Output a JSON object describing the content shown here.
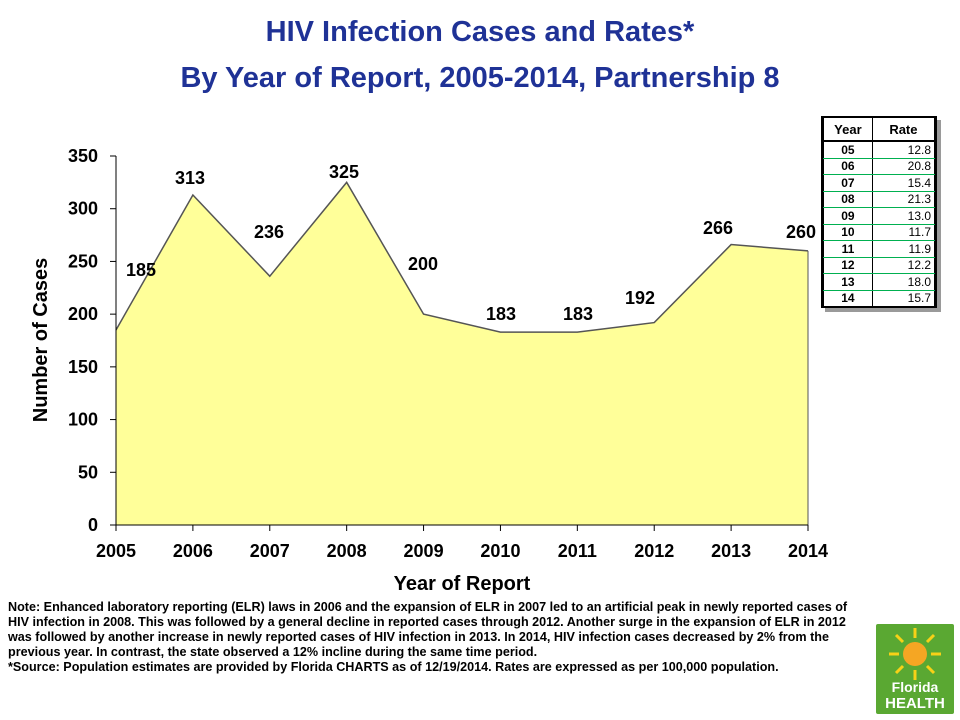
{
  "title_line1": "HIV Infection Cases and Rates*",
  "title_line2": "By Year of Report, 2005-2014, Partnership 8",
  "chart_data": {
    "type": "area",
    "x": [
      "2005",
      "2006",
      "2007",
      "2008",
      "2009",
      "2010",
      "2011",
      "2012",
      "2013",
      "2014"
    ],
    "values": [
      185,
      313,
      236,
      325,
      200,
      183,
      183,
      192,
      266,
      260
    ],
    "data_labels": [
      "185",
      "313",
      "236",
      "325",
      "200",
      "183",
      "183",
      "192",
      "266",
      "260"
    ],
    "yticks": [
      "0",
      "50",
      "100",
      "150",
      "200",
      "250",
      "300",
      "350"
    ],
    "xlabel": "Year of Report",
    "ylabel": "Number of Cases",
    "ylim": [
      0,
      350
    ],
    "grid": false,
    "fill_color": "#ffff99",
    "line_color": "#555555"
  },
  "rate_table": {
    "headers": [
      "Year",
      "Rate"
    ],
    "rows": [
      {
        "year": "05",
        "rate": "12.8"
      },
      {
        "year": "06",
        "rate": "20.8"
      },
      {
        "year": "07",
        "rate": "15.4"
      },
      {
        "year": "08",
        "rate": "21.3"
      },
      {
        "year": "09",
        "rate": "13.0"
      },
      {
        "year": "10",
        "rate": "11.7"
      },
      {
        "year": "11",
        "rate": "11.9"
      },
      {
        "year": "12",
        "rate": "12.2"
      },
      {
        "year": "13",
        "rate": "18.0"
      },
      {
        "year": "14",
        "rate": "15.7"
      }
    ]
  },
  "note": {
    "main": "Note:  Enhanced laboratory reporting (ELR) laws in 2006 and the expansion of ELR in 2007 led to an artificial peak in newly reported cases of HIV infection in 2008.  This was followed by a general decline in reported cases through 2012.  Another surge in the expansion of ELR in 2012 was followed by another increase in newly reported cases of  HIV infection in 2013.  In 2014, HIV infection cases decreased by 2% from the previous year. In contrast, the state observed a 12% incline during the same time period.",
    "source": "*Source: Population estimates are provided by Florida CHARTS as of 12/19/2014. Rates are expressed as per 100,000 population."
  },
  "logo": {
    "line1": "Florida",
    "line2": "HEALTH",
    "colors": {
      "sun": "#f5a623",
      "ray": "#f7d117",
      "green": "#5aa832",
      "text": "#ffffff"
    }
  }
}
